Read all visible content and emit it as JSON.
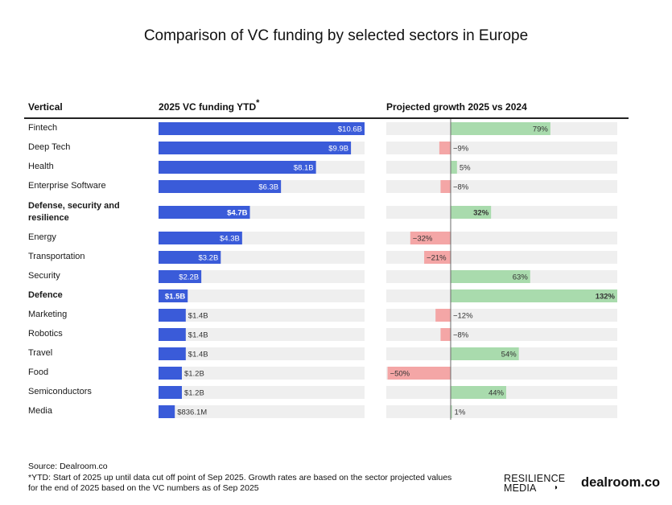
{
  "title": "Comparison of VC funding by selected sectors in Europe",
  "headers": {
    "vertical": "Vertical",
    "funding": "2025 VC funding YTD",
    "funding_star": "*",
    "growth": "Projected growth 2025 vs 2024"
  },
  "footer": {
    "source": "Source:  Dealroom.co",
    "note": "*YTD: Start of 2025 up until data cut off point of Sep 2025. Growth rates are based on the sector projected values for the end of 2025 based on the VC numbers as of Sep 2025"
  },
  "logos": {
    "resilience_line1": "RESILIENCE",
    "resilience_line2": "MEDIA",
    "dealroom": "dealroom.co"
  },
  "colors": {
    "funding_bar": "#3a5bd9",
    "track": "#efefef",
    "positive": "#a9dbad",
    "negative": "#f4a6a6",
    "zero_line": "#6a6a6a"
  },
  "chart_data": {
    "type": "bar",
    "categories": [
      "Fintech",
      "Deep Tech",
      "Health",
      "Enterprise Software",
      "Defense, security and resilience",
      "Energy",
      "Transportation",
      "Security",
      "Defence",
      "Marketing",
      "Robotics",
      "Travel",
      "Food",
      "Semiconductors",
      "Media"
    ],
    "highlighted": [
      false,
      false,
      false,
      false,
      true,
      false,
      false,
      false,
      true,
      false,
      false,
      false,
      false,
      false,
      false
    ],
    "series": [
      {
        "name": "2025 VC funding YTD",
        "values": [
          10.6,
          9.9,
          8.1,
          6.3,
          4.7,
          4.3,
          3.2,
          2.2,
          1.5,
          1.4,
          1.4,
          1.4,
          1.2,
          1.2,
          0.8361
        ],
        "labels": [
          "$10.6B",
          "$9.9B",
          "$8.1B",
          "$6.3B",
          "$4.7B",
          "$4.3B",
          "$3.2B",
          "$2.2B",
          "$1.5B",
          "$1.4B",
          "$1.4B",
          "$1.4B",
          "$1.2B",
          "$1.2B",
          "$836.1M"
        ],
        "unit": "$B",
        "xlim": [
          0,
          10.6
        ]
      },
      {
        "name": "Projected growth 2025 vs 2024",
        "values": [
          79,
          -9,
          5,
          -8,
          32,
          -32,
          -21,
          63,
          132,
          -12,
          -8,
          54,
          -50,
          44,
          1
        ],
        "labels": [
          "79%",
          "−9%",
          "5%",
          "−8%",
          "32%",
          "−32%",
          "−21%",
          "63%",
          "132%",
          "−12%",
          "−8%",
          "54%",
          "−50%",
          "44%",
          "1%"
        ],
        "unit": "%",
        "xlim": [
          -51,
          132
        ]
      }
    ]
  }
}
